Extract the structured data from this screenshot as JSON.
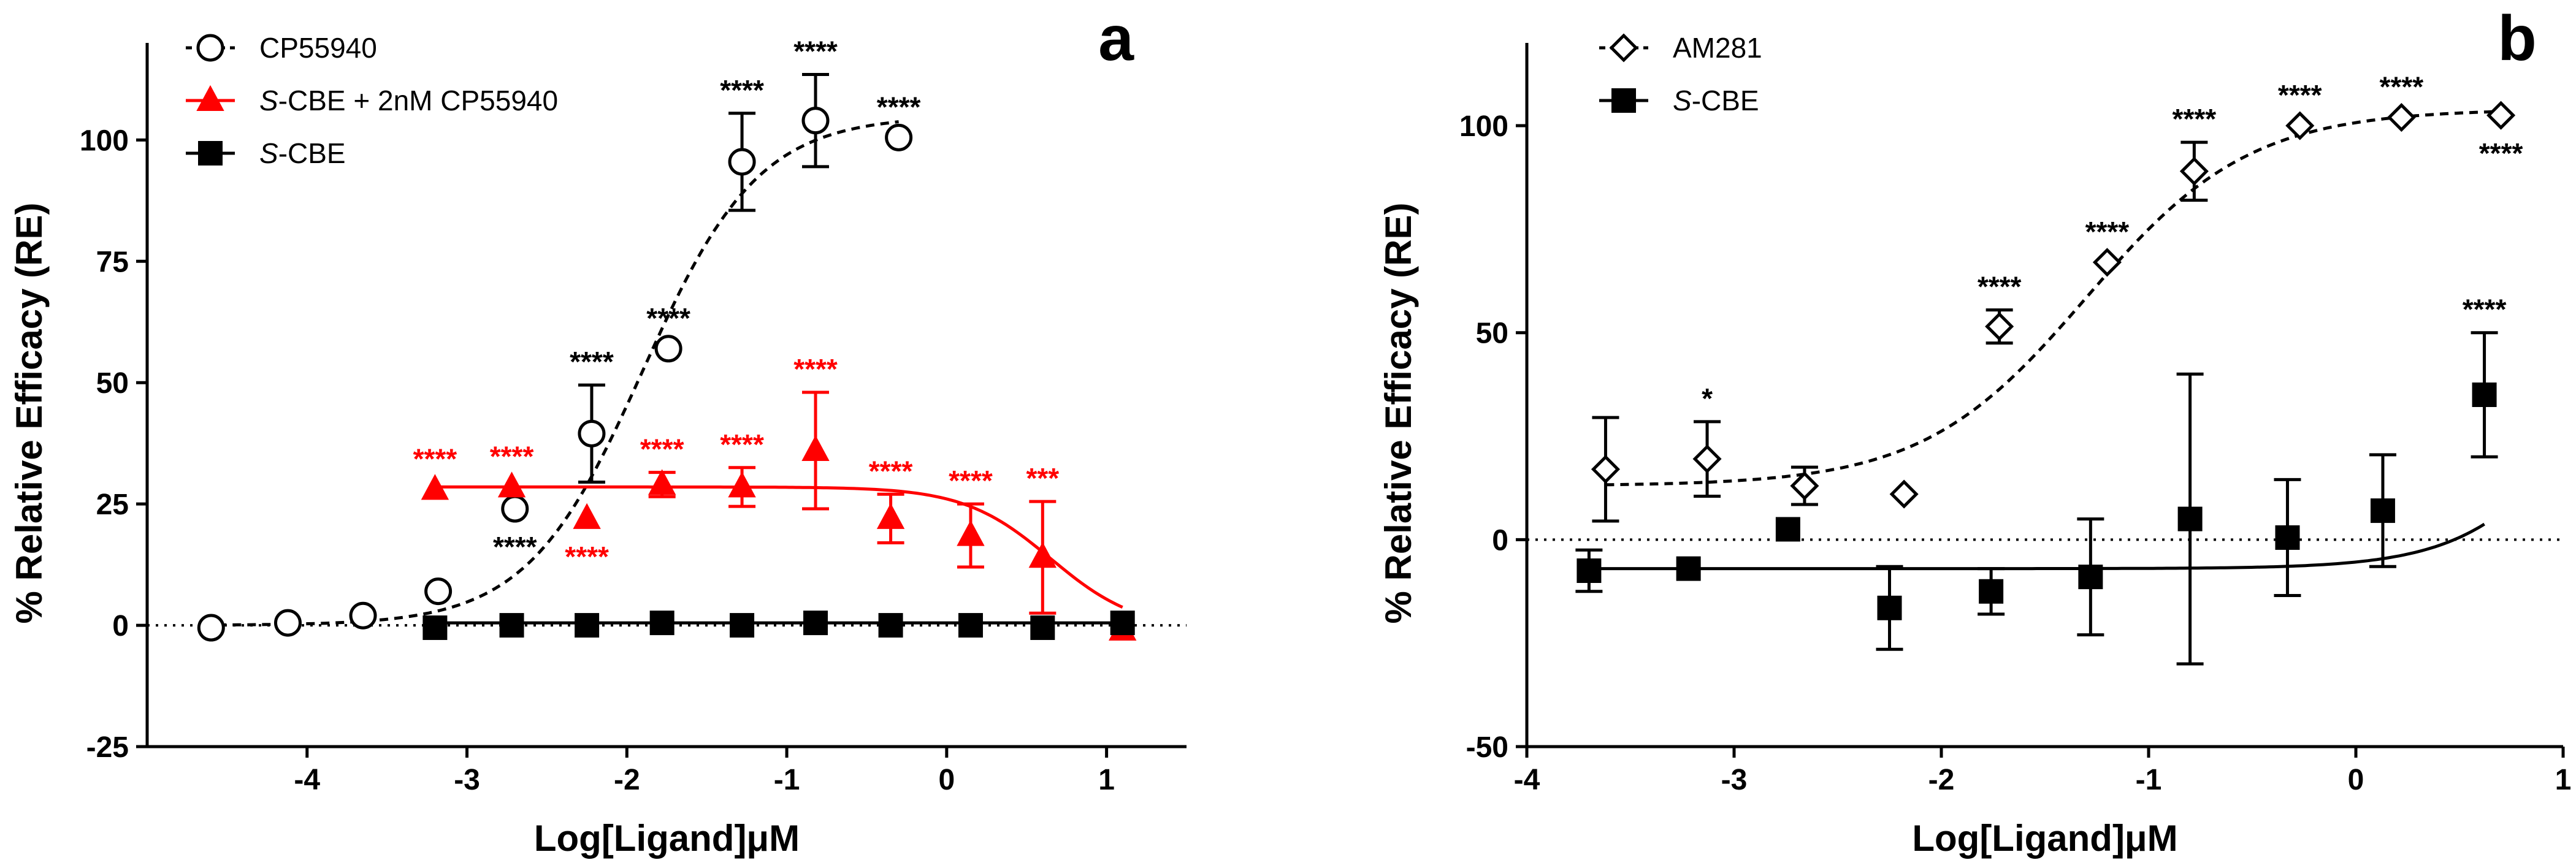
{
  "chart_data": [
    {
      "panel": "a",
      "type": "scatter",
      "xlabel": "Log[Ligand]μM",
      "ylabel": "% Relative Efficacy (RE)",
      "xlim": [
        -5,
        1.5
      ],
      "ylim": [
        -25,
        120
      ],
      "xticks": [
        "-4",
        "-3",
        "-2",
        "-1",
        "0",
        "1"
      ],
      "yticks": [
        "-25",
        "0",
        "25",
        "50",
        "75",
        "100"
      ],
      "zero_line": true,
      "series": [
        {
          "name": "CP55940",
          "color": "#000000",
          "marker": "circle-open",
          "line": "dashed",
          "fit": {
            "bottom": 0,
            "top": 105,
            "logec50": -1.9,
            "hill": 1.2,
            "x_from": -4.65,
            "x_to": -0.3
          },
          "points": [
            {
              "x": -4.6,
              "y": -0.5,
              "err": 0,
              "label": ""
            },
            {
              "x": -4.12,
              "y": 0.5,
              "err": 0,
              "label": ""
            },
            {
              "x": -3.65,
              "y": 2,
              "err": 0,
              "label": ""
            },
            {
              "x": -3.18,
              "y": 7,
              "err": 0,
              "label": ""
            },
            {
              "x": -2.7,
              "y": 24,
              "err": 0,
              "label": "****",
              "label_pos": "below"
            },
            {
              "x": -2.22,
              "y": 39.5,
              "err": 10,
              "label": "****"
            },
            {
              "x": -1.74,
              "y": 57,
              "err": 0,
              "label": "****"
            },
            {
              "x": -1.28,
              "y": 95.5,
              "err": 10,
              "label": "****"
            },
            {
              "x": -0.82,
              "y": 104,
              "err": 9.5,
              "label": "****"
            },
            {
              "x": -0.3,
              "y": 100.5,
              "err": 0,
              "label": "****"
            }
          ]
        },
        {
          "name": "S-CBE + 2nM CP55940",
          "name_italic": "S",
          "name_rest": "-CBE + 2nM CP55940",
          "color": "#ff0000",
          "marker": "triangle-filled",
          "line": "solid",
          "fit": {
            "top": 28.5,
            "bottom": -1,
            "logic50": 0.65,
            "hill": 1.6,
            "x_from": -3.2,
            "x_to": 1.1
          },
          "points": [
            {
              "x": -3.2,
              "y": 28,
              "err": 0,
              "label": "****"
            },
            {
              "x": -2.72,
              "y": 28.5,
              "err": 0,
              "label": "****"
            },
            {
              "x": -2.25,
              "y": 22,
              "err": 0,
              "label": "****",
              "label_pos": "below"
            },
            {
              "x": -1.78,
              "y": 29,
              "err": 2.5,
              "label": "****"
            },
            {
              "x": -1.28,
              "y": 28.5,
              "err": 4,
              "label": "****"
            },
            {
              "x": -0.82,
              "y": 36,
              "err": 12,
              "label": "****"
            },
            {
              "x": -0.35,
              "y": 22,
              "err": 5,
              "label": "****"
            },
            {
              "x": 0.15,
              "y": 18.5,
              "err": 6.5,
              "label": "****"
            },
            {
              "x": 0.6,
              "y": 14,
              "err": 11.5,
              "label": "***"
            },
            {
              "x": 1.1,
              "y": -1,
              "err": 0,
              "label": ""
            }
          ]
        },
        {
          "name": "S-CBE",
          "name_italic": "S",
          "name_rest": "-CBE",
          "color": "#000000",
          "marker": "square-filled",
          "line": "solid",
          "fit": {
            "constant": 0.5,
            "x_from": -3.2,
            "x_to": 1.1
          },
          "points": [
            {
              "x": -3.2,
              "y": -0.5,
              "err": 0,
              "label": ""
            },
            {
              "x": -2.72,
              "y": 0,
              "err": 0,
              "label": ""
            },
            {
              "x": -2.25,
              "y": 0,
              "err": 0,
              "label": ""
            },
            {
              "x": -1.78,
              "y": 0.5,
              "err": 0,
              "label": ""
            },
            {
              "x": -1.28,
              "y": 0,
              "err": 0,
              "label": ""
            },
            {
              "x": -0.82,
              "y": 0.5,
              "err": 0,
              "label": ""
            },
            {
              "x": -0.35,
              "y": 0,
              "err": 0,
              "label": ""
            },
            {
              "x": 0.15,
              "y": 0,
              "err": 0,
              "label": ""
            },
            {
              "x": 0.6,
              "y": -0.5,
              "err": 0,
              "label": ""
            },
            {
              "x": 1.1,
              "y": 0.5,
              "err": 0,
              "label": ""
            }
          ]
        }
      ]
    },
    {
      "panel": "b",
      "type": "scatter",
      "xlabel": "Log[Ligand]μM",
      "ylabel": "% Relative Efficacy (RE)",
      "xlim": [
        -4,
        1
      ],
      "ylim": [
        -50,
        120
      ],
      "xticks": [
        "-4",
        "-3",
        "-2",
        "-1",
        "0",
        "1"
      ],
      "yticks": [
        "-50",
        "0",
        "50",
        "100"
      ],
      "zero_line": true,
      "series": [
        {
          "name": "AM281",
          "color": "#000000",
          "marker": "diamond-open",
          "line": "dashed",
          "fit": {
            "bottom": 13,
            "top": 104,
            "logec50": -1.3,
            "hill": 1.1,
            "x_from": -3.62,
            "x_to": 0.7
          },
          "points": [
            {
              "x": -3.62,
              "y": 17,
              "err": 12.5,
              "label": ""
            },
            {
              "x": -3.13,
              "y": 19.5,
              "err": 9,
              "label": "*"
            },
            {
              "x": -2.66,
              "y": 13,
              "err": 4.5,
              "label": ""
            },
            {
              "x": -2.18,
              "y": 11,
              "err": 0,
              "label": ""
            },
            {
              "x": -1.72,
              "y": 51.5,
              "err": 4,
              "label": "****"
            },
            {
              "x": -1.2,
              "y": 67,
              "err": 0,
              "label": "****"
            },
            {
              "x": -0.78,
              "y": 89,
              "err": 7,
              "label": "****"
            },
            {
              "x": -0.27,
              "y": 100,
              "err": 0,
              "label": "****"
            },
            {
              "x": 0.22,
              "y": 102,
              "err": 0,
              "label": "****"
            },
            {
              "x": 0.7,
              "y": 102.5,
              "err": 0,
              "label": "****",
              "label_pos": "below"
            }
          ]
        },
        {
          "name": "S-CBE",
          "name_italic": "S",
          "name_rest": "-CBE",
          "color": "#000000",
          "marker": "square-filled",
          "line": "solid",
          "fit": {
            "bottom": -7,
            "top": 100,
            "logec50": 1.3,
            "hill": 1.4,
            "x_from": -3.7,
            "x_to": 0.62
          },
          "points": [
            {
              "x": -3.7,
              "y": -7.5,
              "err": 5,
              "label": ""
            },
            {
              "x": -3.22,
              "y": -7,
              "err": 0,
              "label": ""
            },
            {
              "x": -2.74,
              "y": 2.5,
              "err": 0,
              "label": ""
            },
            {
              "x": -2.25,
              "y": -16.5,
              "err": 10,
              "label": ""
            },
            {
              "x": -1.76,
              "y": -12.5,
              "err": 5.5,
              "label": ""
            },
            {
              "x": -1.28,
              "y": -9,
              "err": 14,
              "label": ""
            },
            {
              "x": -0.8,
              "y": 5,
              "err": 35,
              "label": ""
            },
            {
              "x": -0.33,
              "y": 0.5,
              "err": 14,
              "label": ""
            },
            {
              "x": 0.13,
              "y": 7,
              "err": 13.5,
              "label": ""
            },
            {
              "x": 0.62,
              "y": 35,
              "err": 15,
              "label": "****"
            }
          ]
        }
      ]
    }
  ]
}
